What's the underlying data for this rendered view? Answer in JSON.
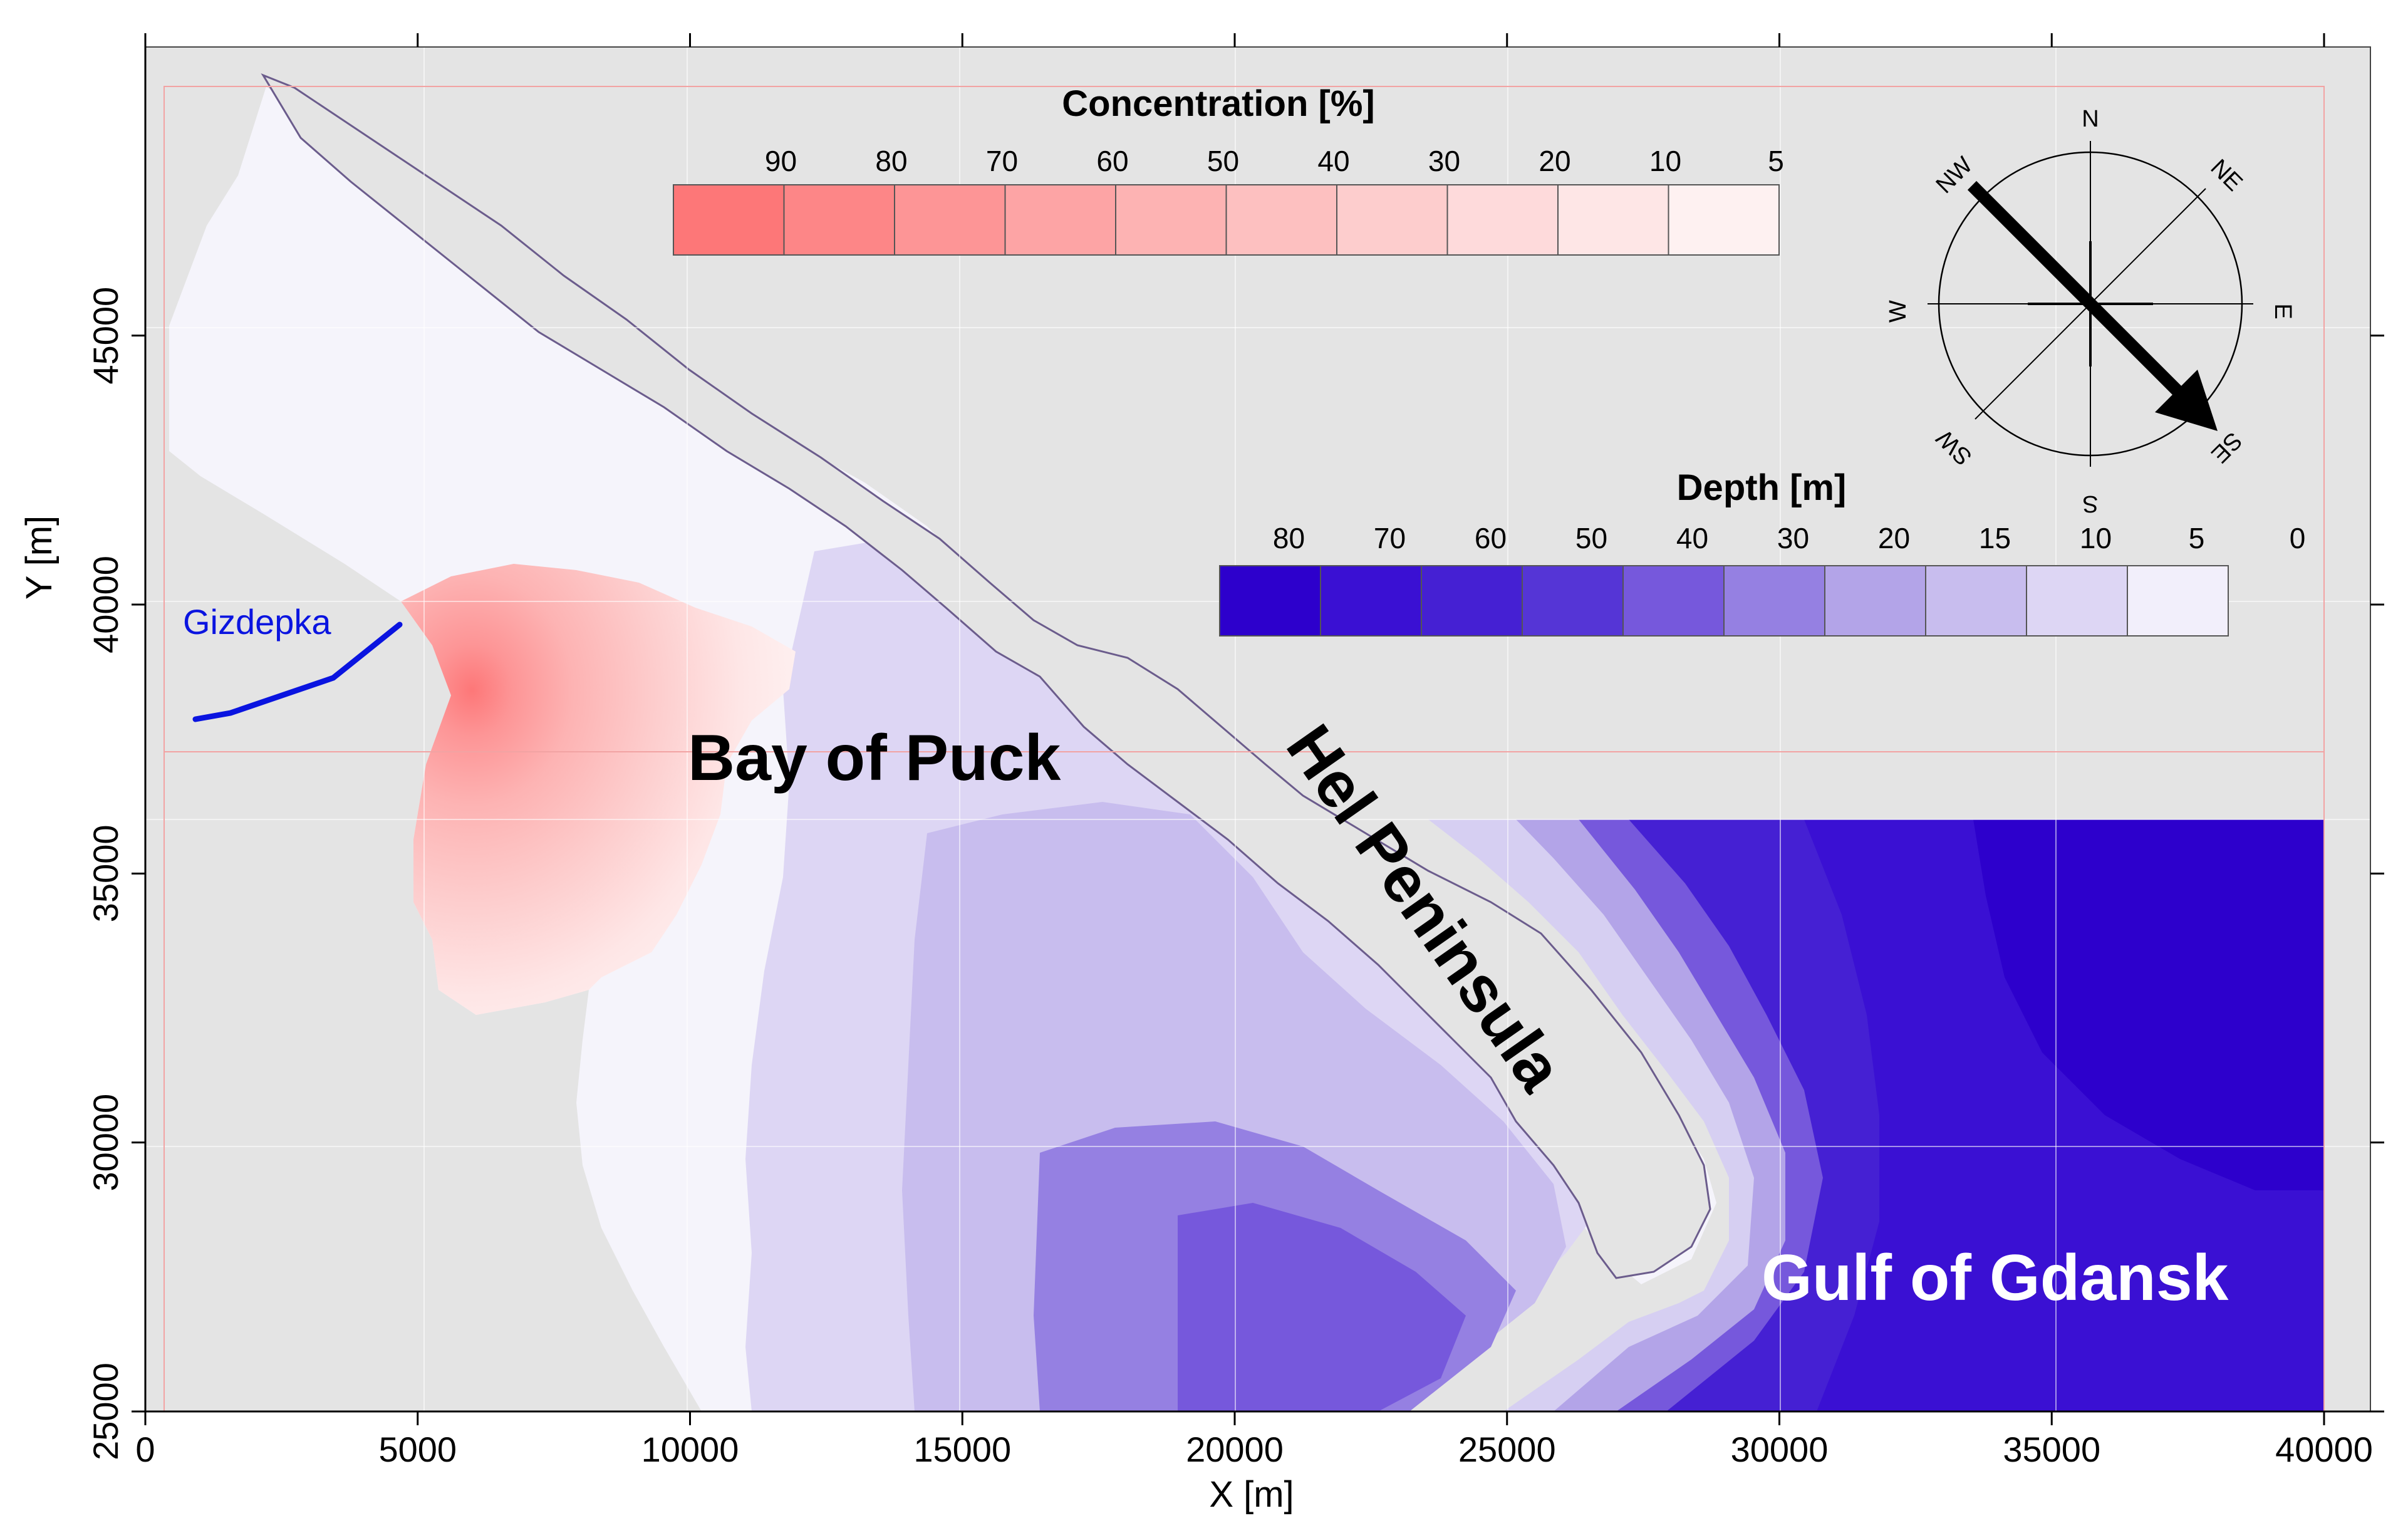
{
  "axes": {
    "x_title": "X [m]",
    "y_title": "Y [m]",
    "x_ticks": [
      "0",
      "5000",
      "10000",
      "15000",
      "20000",
      "25000",
      "30000",
      "35000",
      "40000"
    ],
    "y_ticks": [
      "25000",
      "30000",
      "35000",
      "40000",
      "45000"
    ],
    "x_range": [
      0,
      40000
    ],
    "y_range": [
      25000,
      49500
    ]
  },
  "concentration_legend": {
    "title": "Concentration [%]",
    "labels": [
      "90",
      "80",
      "70",
      "60",
      "50",
      "40",
      "30",
      "20",
      "10",
      "5"
    ],
    "colors": [
      "#fd7778",
      "#fd8687",
      "#fd9596",
      "#fda4a5",
      "#fdb3b3",
      "#fdc0c0",
      "#fdcdcd",
      "#fedadb",
      "#fee6e6",
      "#fef1f1"
    ]
  },
  "depth_legend": {
    "title": "Depth [m]",
    "labels": [
      "80",
      "70",
      "60",
      "50",
      "40",
      "30",
      "20",
      "15",
      "10",
      "5",
      "0"
    ],
    "colors": [
      "#2d00cc",
      "#3a10d3",
      "#4520d3",
      "#5535d6",
      "#7658dc",
      "#9580e2",
      "#b3a4e8",
      "#c8bdee",
      "#ddd6f4",
      "#f2effb"
    ]
  },
  "compass": {
    "directions": [
      "N",
      "NE",
      "E",
      "SE",
      "S",
      "SW",
      "W",
      "NW"
    ],
    "wind_arrow": "NW → SE"
  },
  "labels": {
    "bay": "Bay of Puck",
    "peninsula": "Hel Peninsula",
    "gulf": "Gulf of Gdansk",
    "river": "Gizdepka"
  },
  "colors": {
    "land": "#e4e4e4",
    "shallow_water": "#f5f4fb",
    "deep_water": "#2d00cc",
    "river": "#0a14e0",
    "plume": "#fdb3b3"
  }
}
